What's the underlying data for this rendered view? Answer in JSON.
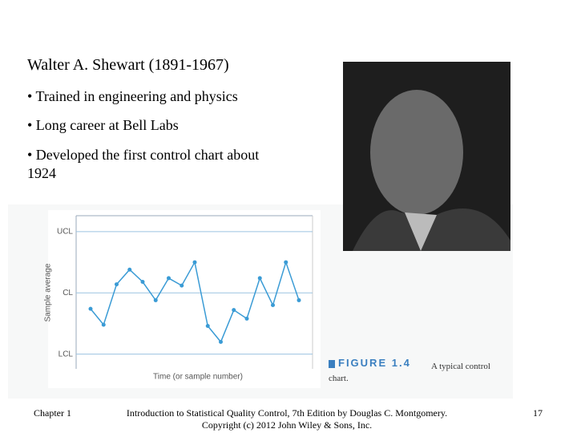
{
  "slide": {
    "title": "Walter A. Shewart (1891-1967)",
    "bullets": [
      "• Trained in engineering and physics",
      "• Long career at Bell Labs",
      "• Developed the first control chart about 1924"
    ]
  },
  "chart_data": {
    "type": "line",
    "ylabel": "Sample average",
    "xlabel": "Time (or sample number)",
    "values": [
      3.7,
      2.4,
      5.7,
      6.9,
      5.9,
      4.4,
      6.2,
      5.6,
      7.5,
      2.3,
      1.0,
      3.6,
      2.9,
      6.2,
      4.0,
      7.5,
      4.4
    ],
    "color": "#3a9bd5",
    "ylim": [
      -1.2,
      11.3
    ],
    "yticks": [
      {
        "value": 10,
        "label": "UCL"
      },
      {
        "value": 5,
        "label": "CL"
      },
      {
        "value": 0,
        "label": "LCL"
      }
    ]
  },
  "figure": {
    "label": "FIGURE 1.4",
    "caption": "A typical control chart."
  },
  "footer": {
    "left": "Chapter 1",
    "center": [
      "Introduction to Statistical Quality Control, 7th Edition by Douglas C. Montgomery.",
      "Copyright (c) 2012  John Wiley & Sons, Inc."
    ],
    "right": "17"
  }
}
